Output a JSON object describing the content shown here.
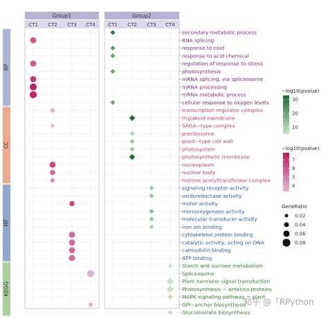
{
  "chart_data": {
    "type": "scatter",
    "groups": [
      {
        "name": "Group1",
        "columns": [
          "CT1",
          "CT2",
          "CT3",
          "CT4"
        ]
      },
      {
        "name": "Group2",
        "columns": [
          "CT1",
          "CT2",
          "CT3",
          "CT4"
        ]
      }
    ],
    "categories": [
      {
        "name": "BP",
        "color": "#a9b4d6",
        "terms": [
          {
            "label": "secondary metabolic process",
            "color": "#7a2c7a"
          },
          {
            "label": "RNA splicing",
            "color": "#7a2c7a"
          },
          {
            "label": "response to cold",
            "color": "#7a2c7a"
          },
          {
            "label": "response to acid chemical",
            "color": "#7a2c7a"
          },
          {
            "label": "regulation of response to stress",
            "color": "#7a2c7a"
          },
          {
            "label": "photosynthesis",
            "color": "#7a2c7a"
          },
          {
            "label": "mRNA splicing, via spliceosome",
            "color": "#7a2c7a"
          },
          {
            "label": "mRNA processing",
            "color": "#7a2c7a"
          },
          {
            "label": "mRNA metabolic process",
            "color": "#7a2c7a"
          },
          {
            "label": "cellular response to oxygen levels",
            "color": "#7a2c7a"
          }
        ]
      },
      {
        "name": "CC",
        "color": "#f2a88f",
        "terms": [
          {
            "label": "transcription regulator complex",
            "color": "#c2406e"
          },
          {
            "label": "thylakoid membrane",
            "color": "#c2406e"
          },
          {
            "label": "SAGA−type complex",
            "color": "#c2406e"
          },
          {
            "label": "preribosome",
            "color": "#c2406e"
          },
          {
            "label": "plant−type cell wall",
            "color": "#c2406e"
          },
          {
            "label": "photosystem",
            "color": "#c2406e"
          },
          {
            "label": "photosynthetic membrane",
            "color": "#c2406e"
          },
          {
            "label": "nucleoplasm",
            "color": "#c2406e"
          },
          {
            "label": "nuclear body",
            "color": "#c2406e"
          },
          {
            "label": "histone acetyltransferase complex",
            "color": "#c2406e"
          }
        ]
      },
      {
        "name": "MF",
        "color": "#8fa8d0",
        "terms": [
          {
            "label": "signaling receptor activity",
            "color": "#2b5b9a"
          },
          {
            "label": "oxidoreductase activity",
            "color": "#2b5b9a"
          },
          {
            "label": "motor activity",
            "color": "#2b5b9a"
          },
          {
            "label": "monooxygenase activity",
            "color": "#2b5b9a"
          },
          {
            "label": "molecular transducer activity",
            "color": "#2b5b9a"
          },
          {
            "label": "iron ion binding",
            "color": "#2b5b9a"
          },
          {
            "label": "cytoskeletal protein binding",
            "color": "#2b5b9a"
          },
          {
            "label": "catalytic activity, acting on DNA",
            "color": "#2b5b9a"
          },
          {
            "label": "calmodulin binding",
            "color": "#2b5b9a"
          },
          {
            "label": "ATP binding",
            "color": "#2b5b9a"
          }
        ]
      },
      {
        "name": "KEGG",
        "color": "#a4d39a",
        "terms": [
          {
            "label": "Starch and sucrose metabolism",
            "color": "#2f7a2f"
          },
          {
            "label": "Spliceosome",
            "color": "#2f7a2f"
          },
          {
            "label": "Plant hormone signal transduction",
            "color": "#2f7a2f"
          },
          {
            "label": "Photosynthesis − antenna proteins",
            "color": "#2f7a2f"
          },
          {
            "label": "MAPK signaling pathway − plant",
            "color": "#2f7a2f"
          },
          {
            "label": "GPI−anchor biosynthesis",
            "color": "#2f7a2f"
          },
          {
            "label": "Glucosinolate biosynthesis",
            "color": "#2f7a2f"
          }
        ]
      }
    ],
    "points": [
      {
        "row": 0,
        "group": 1,
        "col": 0,
        "neglogp": 30,
        "ratio": 0.02
      },
      {
        "row": 1,
        "group": 0,
        "col": 0,
        "neglogp": 6,
        "ratio": 0.04
      },
      {
        "row": 2,
        "group": 1,
        "col": 0,
        "neglogp": 22,
        "ratio": 0.02
      },
      {
        "row": 3,
        "group": 1,
        "col": 0,
        "neglogp": 20,
        "ratio": 0.02
      },
      {
        "row": 4,
        "group": 0,
        "col": 0,
        "neglogp": 6,
        "ratio": 0.04
      },
      {
        "row": 5,
        "group": 1,
        "col": 0,
        "neglogp": 20,
        "ratio": 0.02
      },
      {
        "row": 6,
        "group": 0,
        "col": 0,
        "neglogp": 7,
        "ratio": 0.04
      },
      {
        "row": 7,
        "group": 0,
        "col": 0,
        "neglogp": 7.5,
        "ratio": 0.05
      },
      {
        "row": 8,
        "group": 0,
        "col": 0,
        "neglogp": 7.5,
        "ratio": 0.05
      },
      {
        "row": 9,
        "group": 1,
        "col": 0,
        "neglogp": 20,
        "ratio": 0.02
      },
      {
        "row": 10,
        "group": 0,
        "col": 1,
        "neglogp": 3.5,
        "ratio": 0.02
      },
      {
        "row": 11,
        "group": 1,
        "col": 1,
        "neglogp": 33,
        "ratio": 0.03
      },
      {
        "row": 12,
        "group": 0,
        "col": 1,
        "neglogp": 3.5,
        "ratio": 0.01
      },
      {
        "row": 13,
        "group": 1,
        "col": 1,
        "neglogp": 10,
        "ratio": 0.02
      },
      {
        "row": 14,
        "group": 1,
        "col": 1,
        "neglogp": 12,
        "ratio": 0.02
      },
      {
        "row": 15,
        "group": 1,
        "col": 1,
        "neglogp": 12,
        "ratio": 0.02
      },
      {
        "row": 16,
        "group": 1,
        "col": 1,
        "neglogp": 33,
        "ratio": 0.03
      },
      {
        "row": 17,
        "group": 0,
        "col": 1,
        "neglogp": 6.5,
        "ratio": 0.04
      },
      {
        "row": 18,
        "group": 0,
        "col": 1,
        "neglogp": 5.5,
        "ratio": 0.03
      },
      {
        "row": 19,
        "group": 0,
        "col": 1,
        "neglogp": 4.5,
        "ratio": 0.02
      },
      {
        "row": 20,
        "group": 1,
        "col": 2,
        "neglogp": 12,
        "ratio": 0.02
      },
      {
        "row": 21,
        "group": 1,
        "col": 2,
        "neglogp": 12,
        "ratio": 0.02
      },
      {
        "row": 22,
        "group": 0,
        "col": 2,
        "neglogp": 6.5,
        "ratio": 0.03
      },
      {
        "row": 23,
        "group": 1,
        "col": 2,
        "neglogp": 14,
        "ratio": 0.02
      },
      {
        "row": 24,
        "group": 1,
        "col": 2,
        "neglogp": 12,
        "ratio": 0.02
      },
      {
        "row": 25,
        "group": 1,
        "col": 2,
        "neglogp": 10,
        "ratio": 0.02
      },
      {
        "row": 26,
        "group": 0,
        "col": 2,
        "neglogp": 5.5,
        "ratio": 0.04
      },
      {
        "row": 27,
        "group": 0,
        "col": 2,
        "neglogp": 5.5,
        "ratio": 0.04
      },
      {
        "row": 28,
        "group": 0,
        "col": 2,
        "neglogp": 5.5,
        "ratio": 0.04
      },
      {
        "row": 29,
        "group": 0,
        "col": 2,
        "neglogp": 5.5,
        "ratio": 0.04
      },
      {
        "row": 30,
        "group": 1,
        "col": 3,
        "neglogp": 6,
        "ratio": 0.02
      },
      {
        "row": 31,
        "group": 0,
        "col": 3,
        "neglogp": 3.5,
        "ratio": 0.05
      },
      {
        "row": 32,
        "group": 1,
        "col": 3,
        "neglogp": 6,
        "ratio": 0.04
      },
      {
        "row": 33,
        "group": 1,
        "col": 3,
        "neglogp": 6,
        "ratio": 0.04
      },
      {
        "row": 34,
        "group": 1,
        "col": 3,
        "neglogp": 8,
        "ratio": 0.02
      },
      {
        "row": 35,
        "group": 0,
        "col": 3,
        "neglogp": 3.5,
        "ratio": 0.02
      },
      {
        "row": 36,
        "group": 1,
        "col": 3,
        "neglogp": 6,
        "ratio": 0.02
      }
    ],
    "legend_pvalue_group2": {
      "title": "−log10(pvalue)",
      "ticks": [
        10,
        20,
        30
      ],
      "range": [
        5,
        33
      ],
      "low": "#c8e6c9",
      "high": "#1f6b2f",
      "marker": "diamond"
    },
    "legend_pvalue_group1": {
      "title": "−log10(pvalue)",
      "ticks": [
        4,
        5,
        6,
        7
      ],
      "range": [
        3.3,
        7.8
      ],
      "low": "#e3b6d1",
      "high": "#c2185b",
      "marker": "circle"
    },
    "legend_ratio": {
      "title": "GeneRatio",
      "ticks": [
        0.02,
        0.04,
        0.06,
        0.08
      ]
    },
    "legend_position": "right"
  },
  "watermark": "知乎 @「RPython"
}
